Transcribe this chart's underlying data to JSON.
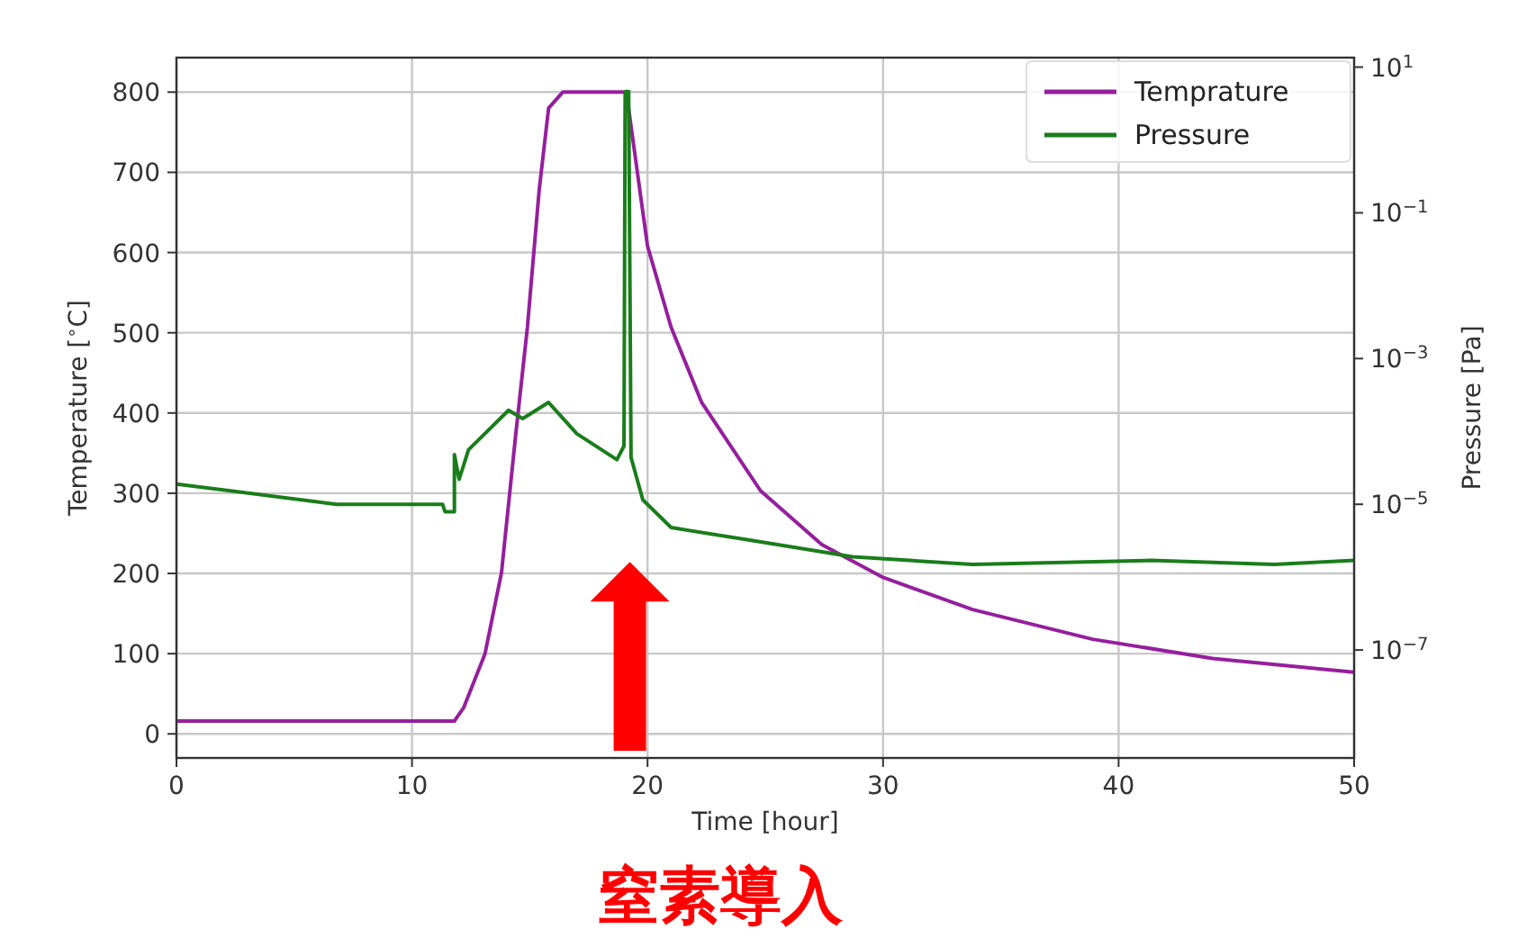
{
  "chart_data": {
    "type": "line",
    "xlabel": "Time [hour]",
    "ylabel": "Temperature [$^{∘}$C]",
    "y2label": "Pressure [Pa]",
    "xlim": [
      0,
      50
    ],
    "xticks": [
      0,
      10,
      20,
      30,
      40,
      50
    ],
    "ylim": [
      -30,
      843
    ],
    "yticks": [
      0,
      100,
      200,
      300,
      400,
      500,
      600,
      700,
      800
    ],
    "y2lim": [
      3.3e-09,
      13.5
    ],
    "y2ticks": [
      {
        "value": 1e-07,
        "label": "10$^{−7}$"
      },
      {
        "value": 1e-05,
        "label": "10$^{−5}$"
      },
      {
        "value": 0.001,
        "label": "10$^{−3}$"
      },
      {
        "value": 0.1,
        "label": "10$^{−1}$"
      },
      {
        "value": 10,
        "label": "10$^{1}$"
      }
    ],
    "log": "y2",
    "grid": true,
    "legend": "top right",
    "series": [
      {
        "name": "Temprature",
        "color": "#951f9c",
        "x": [
          0,
          11.8,
          12.2,
          13.1,
          13.8,
          14.4,
          14.9,
          15.4,
          15.8,
          16.4,
          19.1,
          20.0,
          21.0,
          22.3,
          24.8,
          27.4,
          30.0,
          33.8,
          38.9,
          44.0,
          50
        ],
        "values": [
          16,
          16,
          33,
          100,
          201,
          372,
          507,
          678,
          780,
          800,
          800,
          608,
          507,
          413,
          303,
          236,
          195,
          155,
          118,
          94,
          77
        ]
      },
      {
        "name": "Pressure",
        "color": "#1a7d1a",
        "axis": "y2",
        "x": [
          0,
          6.8,
          11.3,
          11.4,
          11.8,
          11.8,
          12.0,
          12.4,
          14.1,
          14.7,
          15.8,
          17.0,
          18.7,
          19.0,
          19.05,
          19.2,
          19.3,
          19.8,
          21.0,
          24.4,
          28.7,
          33.8,
          41.4,
          46.6,
          50
        ],
        "values": [
          1.9e-05,
          1e-05,
          1e-05,
          7.9e-06,
          7.9e-06,
          4.8e-05,
          2.2e-05,
          5.6e-05,
          0.000195,
          0.00015,
          0.00025,
          9.3e-05,
          4.1e-05,
          6.3e-05,
          4.6,
          4.6,
          4.4e-05,
          1.15e-05,
          4.8e-06,
          3.2e-06,
          1.9e-06,
          1.5e-06,
          1.7e-06,
          1.5e-06,
          1.7e-06
        ]
      }
    ],
    "annotations": [
      "窒素導入"
    ]
  }
}
